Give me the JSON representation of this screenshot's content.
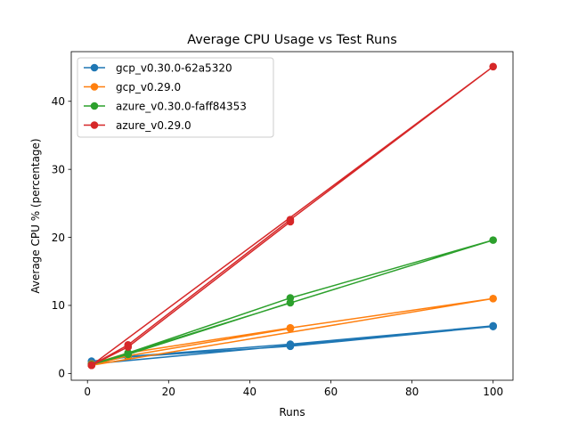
{
  "chart_data": {
    "type": "line",
    "title": "Average CPU Usage vs Test Runs",
    "xlabel": "Runs",
    "ylabel": "Average CPU % (percentage)",
    "xlim": [
      -4.0,
      104.9
    ],
    "ylim": [
      -1.0,
      47.3
    ],
    "xticks": [
      0,
      20,
      40,
      60,
      80,
      100
    ],
    "yticks": [
      0,
      10,
      20,
      30,
      40
    ],
    "grid": false,
    "legend_position": "top-left",
    "series": [
      {
        "name": "gcp_v0.30.0-62a5320",
        "color": "#1f77b4",
        "points": [
          [
            1,
            1.8
          ],
          [
            10,
            2.4
          ],
          [
            50,
            4.0
          ],
          [
            100,
            6.9
          ],
          [
            1,
            1.4
          ],
          [
            10,
            2.5
          ],
          [
            50,
            4.3
          ],
          [
            100,
            7.0
          ]
        ]
      },
      {
        "name": "gcp_v0.29.0",
        "color": "#ff7f0e",
        "points": [
          [
            1,
            1.4
          ],
          [
            10,
            3.0
          ],
          [
            50,
            6.7
          ],
          [
            100,
            11.0
          ],
          [
            1,
            1.2
          ],
          [
            10,
            2.6
          ],
          [
            50,
            6.6
          ]
        ]
      },
      {
        "name": "azure_v0.30.0-faff84353",
        "color": "#2ca02c",
        "points": [
          [
            1,
            1.3
          ],
          [
            10,
            3.0
          ],
          [
            50,
            11.1
          ],
          [
            100,
            19.6
          ],
          [
            1,
            1.3
          ],
          [
            10,
            2.8
          ],
          [
            50,
            10.4
          ]
        ]
      },
      {
        "name": "azure_v0.29.0",
        "color": "#d62728",
        "points": [
          [
            1,
            1.2
          ],
          [
            10,
            4.2
          ],
          [
            50,
            22.6
          ],
          [
            100,
            45.1
          ],
          [
            1,
            1.2
          ],
          [
            10,
            3.9
          ],
          [
            50,
            22.3
          ]
        ]
      }
    ]
  }
}
